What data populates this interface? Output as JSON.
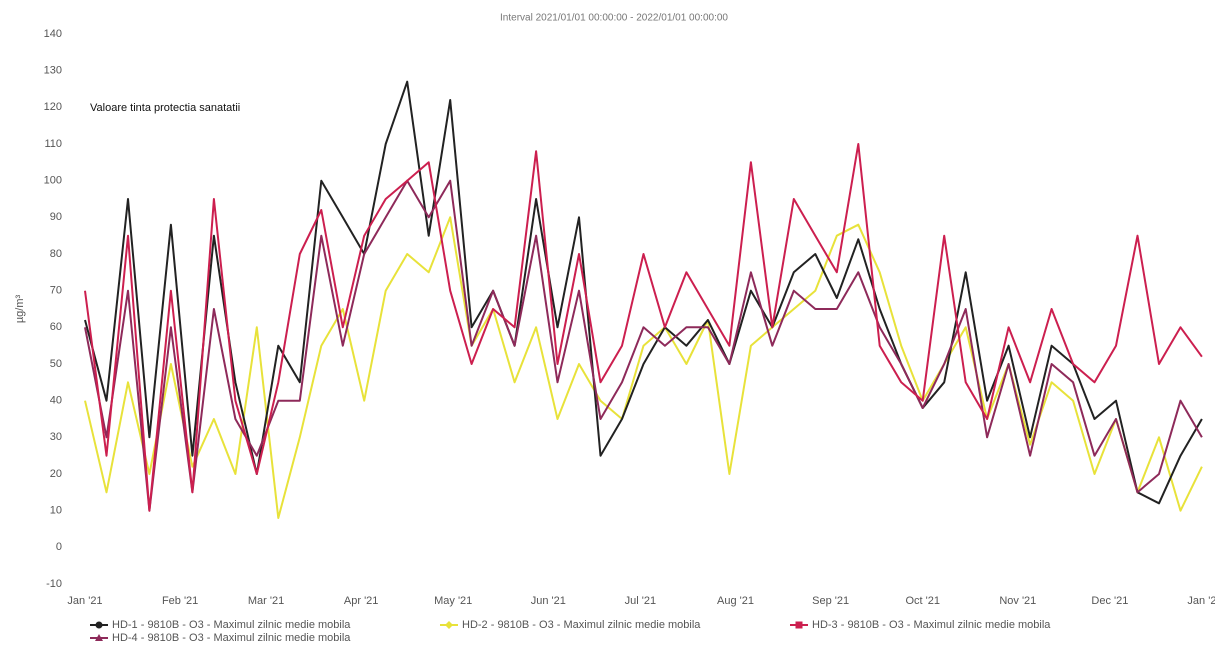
{
  "chart_data": {
    "type": "line",
    "title": "Interval 2021/01/01 00:00:00 - 2022/01/01 00:00:00",
    "y_label": "µg/m³",
    "annotation": "Valoare tinta protectia sanatatii",
    "x": [
      0,
      7,
      14,
      21,
      28,
      35,
      42,
      49,
      56,
      63,
      70,
      77,
      84,
      91,
      98,
      105,
      112,
      119,
      126,
      133,
      140,
      147,
      154,
      161,
      168,
      175,
      182,
      189,
      196,
      203,
      210,
      217,
      224,
      231,
      238,
      245,
      252,
      259,
      266,
      273,
      280,
      287,
      294,
      301,
      308,
      315,
      322,
      329,
      336,
      343,
      350,
      357,
      364
    ],
    "xlim": [
      0,
      365
    ],
    "xticks": [
      {
        "value": 0,
        "label": "Jan '21"
      },
      {
        "value": 31,
        "label": "Feb '21"
      },
      {
        "value": 59,
        "label": "Mar '21"
      },
      {
        "value": 90,
        "label": "Apr '21"
      },
      {
        "value": 120,
        "label": "May '21"
      },
      {
        "value": 151,
        "label": "Jun '21"
      },
      {
        "value": 181,
        "label": "Jul '21"
      },
      {
        "value": 212,
        "label": "Aug '21"
      },
      {
        "value": 243,
        "label": "Sep '21"
      },
      {
        "value": 273,
        "label": "Oct '21"
      },
      {
        "value": 304,
        "label": "Nov '21"
      },
      {
        "value": 334,
        "label": "Dec '21"
      },
      {
        "value": 365,
        "label": "Jan '22"
      }
    ],
    "ylim": [
      -10,
      140
    ],
    "yticks": [
      -10,
      0,
      10,
      20,
      30,
      40,
      50,
      60,
      70,
      80,
      90,
      100,
      110,
      120,
      130,
      140
    ],
    "grid": false,
    "series": [
      {
        "name": "HD-1 - 9810B - O3 - Maximul zilnic medie mobila",
        "color": "#222222",
        "marker": "circle",
        "values": [
          62,
          40,
          95,
          30,
          88,
          25,
          85,
          45,
          20,
          55,
          45,
          100,
          90,
          80,
          110,
          127,
          85,
          122,
          60,
          70,
          55,
          95,
          60,
          90,
          25,
          35,
          50,
          60,
          55,
          62,
          50,
          70,
          60,
          75,
          80,
          68,
          84,
          65,
          50,
          38,
          45,
          75,
          40,
          55,
          30,
          55,
          50,
          35,
          40,
          15,
          12,
          25,
          35
        ]
      },
      {
        "name": "HD-2 - 9810B - O3 - Maximul zilnic medie mobila",
        "color": "#e8e23a",
        "marker": "diamond",
        "values": [
          40,
          15,
          45,
          20,
          50,
          22,
          35,
          20,
          60,
          8,
          30,
          55,
          65,
          40,
          70,
          80,
          75,
          90,
          55,
          65,
          45,
          60,
          35,
          50,
          40,
          35,
          55,
          60,
          50,
          62,
          20,
          55,
          60,
          65,
          70,
          85,
          88,
          75,
          55,
          40,
          50,
          60,
          35,
          50,
          28,
          45,
          40,
          20,
          35,
          15,
          30,
          10,
          22
        ]
      },
      {
        "name": "HD-3 - 9810B - O3 - Maximul zilnic medie mobila",
        "color": "#cc1f4f",
        "marker": "square",
        "values": [
          70,
          25,
          85,
          10,
          70,
          15,
          95,
          40,
          20,
          45,
          80,
          92,
          60,
          85,
          95,
          100,
          105,
          70,
          50,
          65,
          60,
          108,
          50,
          80,
          45,
          55,
          80,
          60,
          75,
          65,
          55,
          105,
          60,
          95,
          85,
          75,
          110,
          55,
          45,
          40,
          85,
          45,
          35,
          60,
          45,
          65,
          50,
          45,
          55,
          85,
          50,
          60,
          52
        ]
      },
      {
        "name": "HD-4 - 9810B - O3 - Maximul zilnic medie mobila",
        "color": "#8e2a5a",
        "marker": "triangle",
        "values": [
          60,
          30,
          70,
          10,
          60,
          15,
          65,
          35,
          25,
          40,
          40,
          85,
          55,
          80,
          90,
          100,
          90,
          100,
          55,
          70,
          55,
          85,
          45,
          70,
          35,
          45,
          60,
          55,
          60,
          60,
          50,
          75,
          55,
          70,
          65,
          65,
          75,
          60,
          50,
          38,
          50,
          65,
          30,
          50,
          25,
          50,
          45,
          25,
          35,
          15,
          20,
          40,
          30
        ]
      }
    ]
  }
}
